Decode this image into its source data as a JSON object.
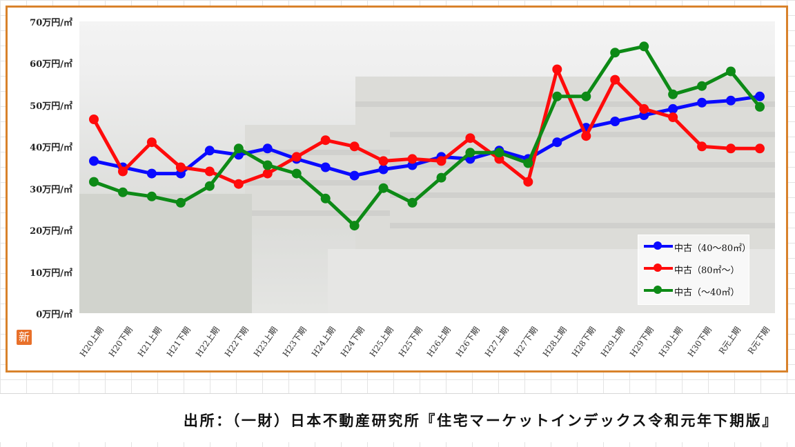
{
  "chart_data": {
    "type": "line",
    "title": "",
    "xlabel": "",
    "ylabel": "",
    "ylim": [
      0,
      70
    ],
    "y_ticks": [
      {
        "value": 70,
        "label": "70万円/㎡"
      },
      {
        "value": 60,
        "label": "60万円/㎡"
      },
      {
        "value": 50,
        "label": "50万円/㎡"
      },
      {
        "value": 40,
        "label": "40万円/㎡"
      },
      {
        "value": 30,
        "label": "30万円/㎡"
      },
      {
        "value": 20,
        "label": "20万円/㎡"
      },
      {
        "value": 10,
        "label": "10万円/㎡"
      },
      {
        "value": 0,
        "label": "0万円/㎡"
      }
    ],
    "categories": [
      "H20上期",
      "H20下期",
      "H21上期",
      "H21下期",
      "H22上期",
      "H22下期",
      "H23上期",
      "H23下期",
      "H24上期",
      "H24下期",
      "H25上期",
      "H25下期",
      "H26上期",
      "H26下期",
      "H27上期",
      "H27下期",
      "H28上期",
      "H28下期",
      "H29上期",
      "H29下期",
      "H30上期",
      "H30下期",
      "R元上期",
      "R元下期"
    ],
    "series": [
      {
        "name": "中古（40～80㎡）",
        "color": "#0a0aff",
        "values": [
          36.5,
          35,
          33.5,
          33.5,
          39,
          38,
          39.5,
          37,
          35,
          33,
          34.5,
          35.5,
          37.5,
          37,
          39,
          37,
          41,
          44.5,
          46,
          47.5,
          49,
          50.5,
          51,
          52
        ]
      },
      {
        "name": "中古（80㎡～）",
        "color": "#ff0b0b",
        "values": [
          46.5,
          34,
          41,
          35,
          34,
          31,
          33.5,
          37.5,
          41.5,
          40,
          36.5,
          37,
          36.5,
          42,
          37,
          31.5,
          58.5,
          42.5,
          56,
          49,
          47,
          40,
          39.5,
          39.5
        ]
      },
      {
        "name": "中古（～40㎡）",
        "color": "#0d8a16",
        "values": [
          31.5,
          29,
          28,
          26.5,
          30.5,
          39.5,
          35.5,
          33.5,
          27.5,
          21,
          30,
          26.5,
          32.5,
          38.5,
          38.5,
          36,
          52,
          52,
          62.5,
          64,
          52.5,
          54.5,
          58,
          49.5
        ]
      }
    ],
    "legend_position": "bottom-right",
    "grid": false
  },
  "source": "出所：（一財）日本不動産研究所『住宅マーケットインデックス令和元年下期版』",
  "logo_char": "新"
}
